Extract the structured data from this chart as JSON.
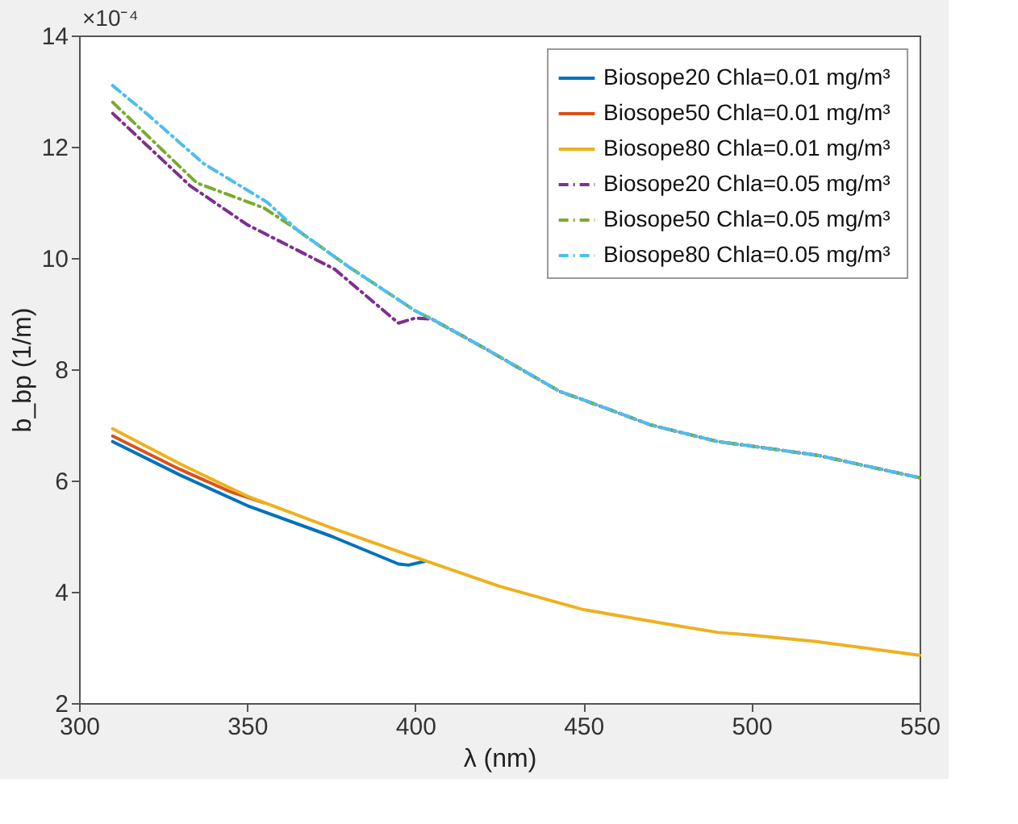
{
  "chart_data": {
    "type": "line",
    "xlabel": "λ (nm)",
    "ylabel": "b_bp (1/m)",
    "annotations": [
      "×10⁻⁴"
    ],
    "xlim": [
      300,
      550
    ],
    "xticks": [
      300,
      350,
      400,
      450,
      500,
      550
    ],
    "ylim": [
      2,
      14
    ],
    "yticks": [
      2,
      4,
      6,
      8,
      10,
      12,
      14
    ],
    "grid": false,
    "legend": "top right",
    "series": [
      {
        "name": "Biosope20 Chla=0.01 mg/m³",
        "color": "#0072bd",
        "line_style": "solid",
        "x": [
          310,
          330,
          350,
          375,
          395,
          398,
          403
        ],
        "values": [
          6.7,
          6.1,
          5.55,
          5.0,
          4.5,
          4.48,
          4.55
        ]
      },
      {
        "name": "Biosope50 Chla=0.01 mg/m³",
        "color": "#d95319",
        "line_style": "solid",
        "x": [
          310,
          330,
          345,
          355
        ],
        "values": [
          6.8,
          6.2,
          5.8,
          5.6
        ]
      },
      {
        "name": "Biosope80 Chla=0.01 mg/m³",
        "color": "#edb120",
        "line_style": "solid",
        "x": [
          310,
          330,
          350,
          375,
          400,
          425,
          450,
          475,
          490,
          500,
          520,
          550
        ],
        "values": [
          6.93,
          6.3,
          5.72,
          5.15,
          4.62,
          4.1,
          3.68,
          3.42,
          3.27,
          3.22,
          3.1,
          2.86
        ]
      },
      {
        "name": "Biosope20  Chla=0.05 mg/m³",
        "color": "#7e2f8e",
        "line_style": "dashed",
        "x": [
          310,
          333,
          350,
          376,
          395,
          400,
          405,
          420,
          443,
          450,
          470,
          490,
          500,
          520,
          550
        ],
        "values": [
          12.6,
          11.3,
          10.6,
          9.8,
          8.83,
          8.92,
          8.9,
          8.4,
          7.6,
          7.45,
          7.0,
          6.7,
          6.62,
          6.45,
          6.05
        ]
      },
      {
        "name": "Biosope50 Chla=0.05 mg/m³",
        "color": "#77ac30",
        "line_style": "dashed",
        "x": [
          310,
          335,
          355,
          365,
          380,
          400,
          405,
          420,
          443,
          450,
          470,
          490,
          500,
          520,
          550
        ],
        "values": [
          12.8,
          11.35,
          10.9,
          10.5,
          9.85,
          9.05,
          8.9,
          8.4,
          7.6,
          7.45,
          7.0,
          6.7,
          6.62,
          6.45,
          6.05
        ]
      },
      {
        "name": "Biosope80 Chla=0.05 mg/m³",
        "color": "#4dbeee",
        "line_style": "dashed",
        "x": [
          310,
          320,
          337,
          356,
          365,
          380,
          400,
          405,
          420,
          443,
          450,
          470,
          490,
          500,
          520,
          550
        ],
        "values": [
          13.1,
          12.6,
          11.7,
          11.0,
          10.5,
          9.85,
          9.05,
          8.9,
          8.4,
          7.6,
          7.45,
          7.0,
          6.7,
          6.62,
          6.45,
          6.05
        ]
      }
    ]
  }
}
